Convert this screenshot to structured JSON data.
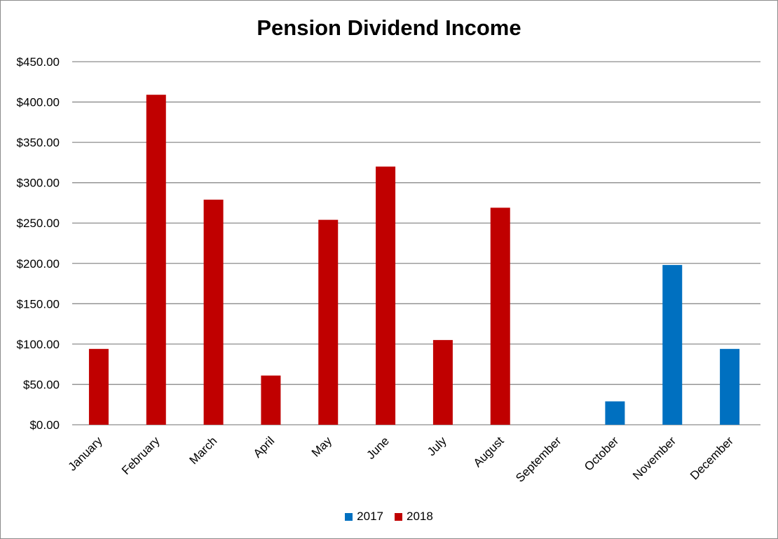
{
  "chart_data": {
    "type": "bar",
    "title": "Pension Dividend Income",
    "xlabel": "",
    "ylabel": "",
    "categories": [
      "January",
      "February",
      "March",
      "April",
      "May",
      "June",
      "July",
      "August",
      "September",
      "October",
      "November",
      "December"
    ],
    "series": [
      {
        "name": "2017",
        "color": "#0070c0",
        "values": [
          null,
          null,
          null,
          null,
          null,
          null,
          null,
          null,
          null,
          29,
          198,
          94
        ]
      },
      {
        "name": "2018",
        "color": "#c00000",
        "values": [
          94,
          409,
          279,
          61,
          254,
          320,
          105,
          269,
          null,
          null,
          null,
          null
        ]
      }
    ],
    "ylim": [
      0,
      450
    ],
    "yticks": [
      "$0.00",
      "$50.00",
      "$100.00",
      "$150.00",
      "$200.00",
      "$250.00",
      "$300.00",
      "$350.00",
      "$400.00",
      "$450.00"
    ],
    "grid": true,
    "legend_position": "bottom"
  }
}
